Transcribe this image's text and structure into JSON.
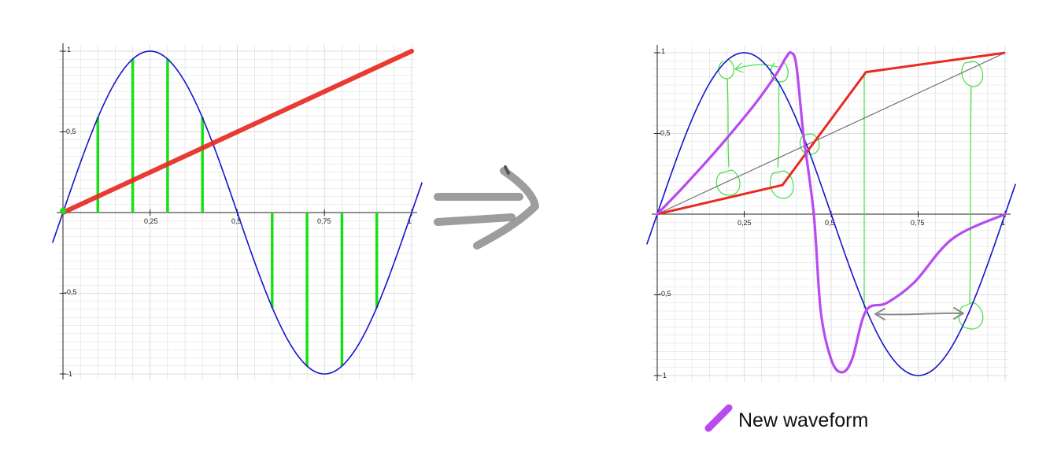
{
  "tick_labels": {
    "y_one": "1",
    "y_half": "0,5",
    "y_neg_half": "-0,5",
    "y_neg_one": "-1",
    "x_quarter": "0,25",
    "x_half": "0,5",
    "x_three_quarter": "0,75",
    "x_one": "1"
  },
  "legend": {
    "label": "New waveform"
  },
  "colors": {
    "sine": "#1515cc",
    "ramp": "#e82a22",
    "samples": "#18e018",
    "new_waveform": "#b84af0",
    "reference_line": "#777777",
    "grid": "#dcdcdc",
    "arrow": "#8c8c8c"
  },
  "chart_data": [
    {
      "type": "line",
      "series": [
        {
          "function": "sin(2*pi*x)",
          "x": [
            0,
            0.125,
            0.25,
            0.375,
            0.5,
            0.625,
            0.75,
            0.875,
            1
          ],
          "values": [
            0,
            0.71,
            1,
            0.71,
            0,
            -0.71,
            -1,
            -0.71,
            0
          ]
        },
        {
          "function": "linear ramp",
          "x": [
            0,
            1
          ],
          "values": [
            0,
            1
          ]
        }
      ],
      "samples": {
        "x": [
          0.1,
          0.2,
          0.3,
          0.4,
          0.6,
          0.7,
          0.8,
          0.9
        ],
        "values": [
          0.59,
          0.95,
          0.95,
          0.59,
          -0.59,
          -0.95,
          -0.95,
          -0.59
        ]
      },
      "xlim": [
        0,
        1
      ],
      "ylim": [
        -1,
        1
      ],
      "grid": true
    },
    {
      "type": "line",
      "series": [
        {
          "function": "sin(2*pi*x)",
          "x": [
            0,
            0.125,
            0.25,
            0.375,
            0.5,
            0.625,
            0.75,
            0.875,
            1
          ],
          "values": [
            0,
            0.71,
            1,
            0.71,
            0,
            -0.71,
            -1,
            -0.71,
            0
          ]
        },
        {
          "function": "identity reference",
          "x": [
            0,
            1
          ],
          "values": [
            0,
            1
          ]
        },
        {
          "function": "warped phase",
          "x": [
            0,
            0.36,
            0.6,
            1
          ],
          "values": [
            0,
            0.18,
            0.88,
            1
          ]
        },
        {
          "name": "New waveform",
          "x": [
            0,
            0.08,
            0.18,
            0.28,
            0.34,
            0.37,
            0.385,
            0.4,
            0.42,
            0.45,
            0.47,
            0.5,
            0.53,
            0.56,
            0.6,
            0.66,
            0.74,
            0.85,
            1
          ],
          "values": [
            0,
            0.18,
            0.42,
            0.68,
            0.86,
            0.97,
            1,
            0.92,
            0.5,
            0.0,
            -0.6,
            -0.9,
            -0.98,
            -0.9,
            -0.6,
            -0.55,
            -0.42,
            -0.15,
            0
          ]
        }
      ],
      "xlim": [
        0,
        1
      ],
      "ylim": [
        -1,
        1
      ],
      "grid": true
    }
  ]
}
